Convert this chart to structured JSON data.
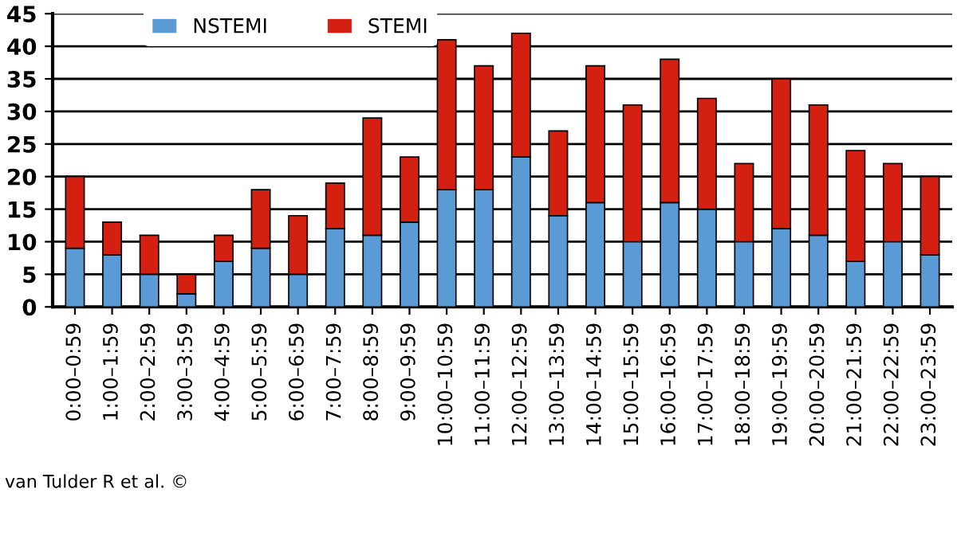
{
  "chart_data": {
    "type": "bar",
    "stacked": true,
    "categories": [
      "0:00–0:59",
      "1:00–1:59",
      "2:00–2:59",
      "3:00–3:59",
      "4:00–4:59",
      "5:00–5:59",
      "6:00–6:59",
      "7:00–7:59",
      "8:00–8:59",
      "9:00–9:59",
      "10:00–10:59",
      "11:00–11:59",
      "12:00–12:59",
      "13:00–13:59",
      "14:00–14:59",
      "15:00–15:59",
      "16:00–16:59",
      "17:00–17:59",
      "18:00–18:59",
      "19:00–19:59",
      "20:00–20:59",
      "21:00–21:59",
      "22:00–22:59",
      "23:00–23:59"
    ],
    "series": [
      {
        "name": "NSTEMI",
        "color": "#5b9bd5",
        "values": [
          9,
          8,
          5,
          2,
          7,
          9,
          5,
          12,
          11,
          13,
          18,
          18,
          23,
          14,
          16,
          10,
          16,
          15,
          10,
          12,
          11,
          7,
          10,
          8
        ]
      },
      {
        "name": "STEMI",
        "color": "#d42010",
        "values": [
          11,
          5,
          6,
          3,
          4,
          9,
          9,
          7,
          18,
          10,
          23,
          19,
          19,
          13,
          21,
          21,
          22,
          17,
          12,
          23,
          20,
          17,
          12,
          12
        ]
      }
    ],
    "ylim": [
      0,
      45
    ],
    "yticks": [
      0,
      5,
      10,
      15,
      20,
      25,
      30,
      35,
      40,
      45
    ],
    "grid": "y",
    "legend": "top left",
    "annotations": [
      "van Tulder R et al. ©"
    ]
  }
}
